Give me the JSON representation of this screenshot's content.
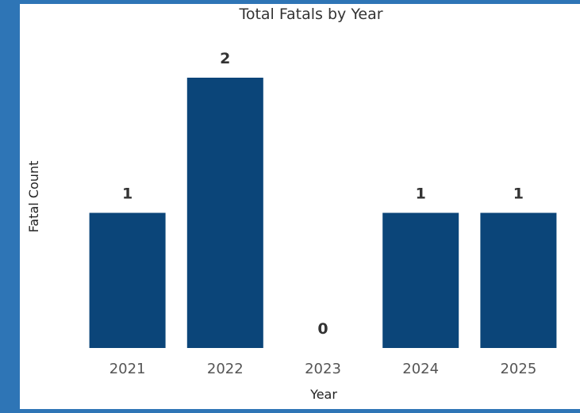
{
  "colors": {
    "frame": "#2e75b6",
    "panel": "#ffffff",
    "bar": "#0b4579"
  },
  "chart_data": {
    "type": "bar",
    "title": "Total Fatals by Year",
    "xlabel": "Year",
    "ylabel": "Fatal Count",
    "categories": [
      "2021",
      "2022",
      "2023",
      "2024",
      "2025"
    ],
    "values": [
      1,
      2,
      0,
      1,
      1
    ],
    "data_labels": [
      "1",
      "2",
      "0",
      "1",
      "1"
    ],
    "ylim": [
      0,
      2
    ],
    "grid": false,
    "legend": "none"
  }
}
